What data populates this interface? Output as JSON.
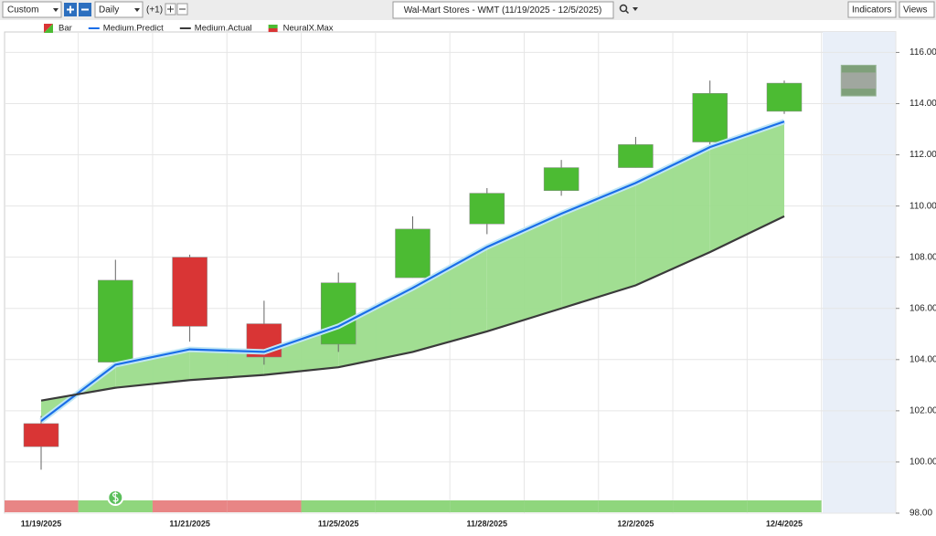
{
  "toolbar": {
    "period": "Custom",
    "interval": "Daily",
    "offset": "(+1)",
    "symbol": "Wal-Mart Stores - WMT (11/19/2025 - 12/5/2025)",
    "indicators": "Indicators",
    "views": "Views"
  },
  "chart_data": {
    "type": "candlestick",
    "categories": [
      "11/19/2025",
      null,
      "11/21/2025",
      null,
      "11/25/2025",
      null,
      "11/28/2025",
      null,
      "12/2/2025",
      null,
      "12/4/2025",
      null
    ],
    "candles": {
      "name": "Bar",
      "up_color": "#4cbb33",
      "down_color": "#d93535",
      "open": [
        101.5,
        103.9,
        108.0,
        105.4,
        104.6,
        107.2,
        109.3,
        110.6,
        111.5,
        112.5,
        113.7,
        null
      ],
      "high": [
        101.8,
        107.9,
        108.1,
        106.3,
        107.4,
        109.6,
        110.7,
        111.8,
        112.7,
        114.9,
        114.9,
        null
      ],
      "low": [
        99.7,
        103.7,
        104.7,
        103.8,
        104.3,
        107.2,
        108.9,
        110.4,
        111.5,
        112.4,
        113.6,
        null
      ],
      "close": [
        100.6,
        107.1,
        105.3,
        104.1,
        107.0,
        109.1,
        110.5,
        111.5,
        112.4,
        114.4,
        114.8,
        null
      ]
    },
    "series": [
      {
        "name": "Medium.Predict",
        "color": "#1a6ee8",
        "values": [
          101.6,
          103.8,
          104.4,
          104.3,
          105.3,
          106.8,
          108.4,
          109.7,
          110.9,
          112.3,
          113.3,
          null
        ]
      },
      {
        "name": "Medium.Actual",
        "color": "#3a3a3a",
        "values": [
          102.4,
          102.9,
          103.2,
          103.4,
          103.7,
          104.3,
          105.1,
          106.0,
          106.9,
          108.2,
          109.6,
          null
        ]
      }
    ],
    "forecast": {
      "name": "NeuralX.Max",
      "color": "#7fa07a",
      "high": [
        null,
        null,
        null,
        null,
        null,
        null,
        null,
        null,
        null,
        null,
        null,
        115.5
      ],
      "low": [
        null,
        null,
        null,
        null,
        null,
        null,
        null,
        null,
        null,
        null,
        null,
        114.3
      ]
    },
    "ylim": [
      98,
      116.8
    ],
    "yticks": [
      {
        "value": 98,
        "label": "98.00"
      },
      {
        "value": 100,
        "label": "100.00"
      },
      {
        "value": 102,
        "label": "102.00"
      },
      {
        "value": 104,
        "label": "104.00"
      },
      {
        "value": 106,
        "label": "106.00"
      },
      {
        "value": 108,
        "label": "108.00"
      },
      {
        "value": 110,
        "label": "110.00"
      },
      {
        "value": 112,
        "label": "112.00"
      },
      {
        "value": 114,
        "label": "114.00"
      },
      {
        "value": 116,
        "label": "116.00"
      }
    ],
    "grid": true
  }
}
